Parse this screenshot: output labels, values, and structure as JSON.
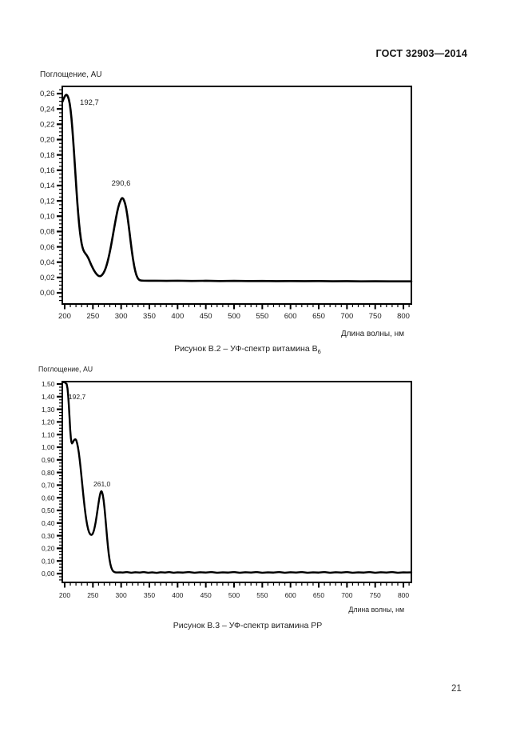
{
  "page": {
    "header": "ГОСТ 32903—2014",
    "page_number": "21"
  },
  "chart_data": [
    {
      "type": "line",
      "id": "b6",
      "title": "",
      "caption": {
        "text": "Рисунок В.2 – УФ-спектр витамина В",
        "sub": "6"
      },
      "x_axis": {
        "label": "Длина волны, нм",
        "min": 195.8,
        "max": 814.1,
        "major_values": [
          200,
          250,
          300,
          350,
          400,
          450,
          500,
          550,
          600,
          650,
          700,
          750,
          800
        ],
        "major_labels": [
          "200",
          "250",
          "300",
          "350",
          "400",
          "450",
          "500",
          "550",
          "600",
          "650",
          "700",
          "750",
          "800"
        ],
        "minor_start": 200,
        "minor_end": 810,
        "minor_step": 10
      },
      "y_axis": {
        "label": "Поглощение, AU",
        "min": -0.0146,
        "max": 0.2694,
        "major_values": [
          0,
          0.02,
          0.04,
          0.06,
          0.08,
          0.1,
          0.12,
          0.14,
          0.16,
          0.18,
          0.2,
          0.22,
          0.24,
          0.26
        ],
        "major_labels": [
          "0,00",
          "0,02",
          "0,04",
          "0,06",
          "0,08",
          "0,10",
          "0,12",
          "0,14",
          "0,16",
          "0,18",
          "0,20",
          "0,22",
          "0,24",
          "0,26"
        ],
        "minor_start": -0.01,
        "minor_end": 0.265,
        "minor_step": 0.005
      },
      "annotations": [
        {
          "text": "192,7",
          "x": 227,
          "y": 0.2455
        },
        {
          "text": "290,6",
          "x": 283,
          "y": 0.14
        }
      ],
      "series": [
        {
          "name": "absorbance",
          "points": [
            [
              195.8,
              0.249
            ],
            [
              198,
              0.253
            ],
            [
              200,
              0.256
            ],
            [
              201.5,
              0.2578
            ],
            [
              203,
              0.2585
            ],
            [
              204.5,
              0.2578
            ],
            [
              206,
              0.2555
            ],
            [
              207.5,
              0.252
            ],
            [
              209,
              0.2465
            ],
            [
              210.5,
              0.2385
            ],
            [
              212,
              0.228
            ],
            [
              213.5,
              0.215
            ],
            [
              215,
              0.2
            ],
            [
              216.5,
              0.184
            ],
            [
              218,
              0.167
            ],
            [
              219.5,
              0.15
            ],
            [
              221,
              0.133
            ],
            [
              222.5,
              0.117
            ],
            [
              224,
              0.103
            ],
            [
              225.5,
              0.0905
            ],
            [
              227,
              0.08
            ],
            [
              228.5,
              0.0715
            ],
            [
              230,
              0.0645
            ],
            [
              231.5,
              0.0595
            ],
            [
              233,
              0.056
            ],
            [
              235,
              0.053
            ],
            [
              237,
              0.051
            ],
            [
              239,
              0.049
            ],
            [
              241,
              0.0465
            ],
            [
              243,
              0.0435
            ],
            [
              245,
              0.04
            ],
            [
              247,
              0.0365
            ],
            [
              249,
              0.0335
            ],
            [
              251,
              0.0305
            ],
            [
              253,
              0.028
            ],
            [
              255,
              0.0258
            ],
            [
              257,
              0.024
            ],
            [
              259,
              0.0226
            ],
            [
              261,
              0.0218
            ],
            [
              263,
              0.0217
            ],
            [
              265,
              0.0225
            ],
            [
              267,
              0.024
            ],
            [
              269,
              0.0262
            ],
            [
              271,
              0.0292
            ],
            [
              273,
              0.033
            ],
            [
              275,
              0.0378
            ],
            [
              277,
              0.0435
            ],
            [
              279,
              0.05
            ],
            [
              281,
              0.0572
            ],
            [
              283,
              0.065
            ],
            [
              285,
              0.0732
            ],
            [
              287,
              0.0818
            ],
            [
              289,
              0.09
            ],
            [
              291,
              0.098
            ],
            [
              293,
              0.1055
            ],
            [
              295,
              0.1118
            ],
            [
              297,
              0.1168
            ],
            [
              299,
              0.1205
            ],
            [
              300.5,
              0.1228
            ],
            [
              302,
              0.1237
            ],
            [
              303.5,
              0.123
            ],
            [
              305,
              0.1208
            ],
            [
              307,
              0.1165
            ],
            [
              309,
              0.11
            ],
            [
              311,
              0.101
            ],
            [
              313,
              0.09
            ],
            [
              315,
              0.0782
            ],
            [
              317,
              0.066
            ],
            [
              319,
              0.0545
            ],
            [
              321,
              0.0442
            ],
            [
              323,
              0.0355
            ],
            [
              325,
              0.0285
            ],
            [
              327,
              0.0232
            ],
            [
              329,
              0.0197
            ],
            [
              331,
              0.0176
            ],
            [
              333,
              0.0165
            ],
            [
              336,
              0.016
            ],
            [
              340,
              0.0158
            ],
            [
              348,
              0.0157
            ],
            [
              360,
              0.0158
            ],
            [
              380,
              0.0156
            ],
            [
              400,
              0.0158
            ],
            [
              425,
              0.0155
            ],
            [
              450,
              0.0157
            ],
            [
              475,
              0.0154
            ],
            [
              500,
              0.0156
            ],
            [
              525,
              0.0153
            ],
            [
              550,
              0.0155
            ],
            [
              575,
              0.0152
            ],
            [
              600,
              0.0154
            ],
            [
              625,
              0.0152
            ],
            [
              650,
              0.0153
            ],
            [
              675,
              0.0151
            ],
            [
              700,
              0.0152
            ],
            [
              725,
              0.015
            ],
            [
              750,
              0.0151
            ],
            [
              775,
              0.015
            ],
            [
              800,
              0.015
            ],
            [
              814,
              0.015
            ]
          ]
        }
      ]
    },
    {
      "type": "line",
      "id": "pp",
      "title": "",
      "caption": {
        "text": "Рисунок В.3 – УФ-спектр витамина РР",
        "sub": ""
      },
      "x_axis": {
        "label": "Длина волны, нм",
        "min": 195.8,
        "max": 814.1,
        "major_values": [
          200,
          250,
          300,
          350,
          400,
          450,
          500,
          550,
          600,
          650,
          700,
          750,
          800
        ],
        "major_labels": [
          "200",
          "250",
          "300",
          "350",
          "400",
          "450",
          "500",
          "550",
          "600",
          "650",
          "700",
          "750",
          "800"
        ],
        "minor_start": 200,
        "minor_end": 810,
        "minor_step": 10
      },
      "y_axis": {
        "label": "Поглощение, AU",
        "min": -0.0696,
        "max": 1.519,
        "major_values": [
          0,
          0.1,
          0.2,
          0.3,
          0.4,
          0.5,
          0.6,
          0.7,
          0.8,
          0.9,
          1.0,
          1.1,
          1.2,
          1.3,
          1.4,
          1.5
        ],
        "major_labels": [
          "0,00",
          "0,10",
          "0,20",
          "0,30",
          "0,40",
          "0,50",
          "0,60",
          "0,70",
          "0,80",
          "0,90",
          "1,00",
          "1,10",
          "1,20",
          "1,30",
          "1,40",
          "1,50"
        ],
        "minor_start": -0.05,
        "minor_end": 1.5,
        "minor_step": 0.025
      },
      "annotations": [
        {
          "text": "192,7",
          "x": 207,
          "y": 1.38
        },
        {
          "text": "261,0",
          "x": 251,
          "y": 0.69
        }
      ],
      "series": [
        {
          "name": "absorbance",
          "points": [
            [
              195.8,
              1.514
            ],
            [
              200,
              1.514
            ],
            [
              202,
              1.505
            ],
            [
              203.5,
              1.5
            ],
            [
              205,
              1.465
            ],
            [
              206.2,
              1.408
            ],
            [
              207.4,
              1.33
            ],
            [
              208.6,
              1.235
            ],
            [
              209.8,
              1.138
            ],
            [
              211,
              1.072
            ],
            [
              212,
              1.04
            ],
            [
              213,
              1.03
            ],
            [
              214.5,
              1.038
            ],
            [
              216,
              1.052
            ],
            [
              217.5,
              1.06
            ],
            [
              219,
              1.063
            ],
            [
              220.5,
              1.055
            ],
            [
              222,
              1.032
            ],
            [
              223.5,
              1.0
            ],
            [
              225,
              0.958
            ],
            [
              226.5,
              0.905
            ],
            [
              228,
              0.845
            ],
            [
              229.5,
              0.78
            ],
            [
              231,
              0.712
            ],
            [
              232.5,
              0.645
            ],
            [
              234,
              0.58
            ],
            [
              235.5,
              0.52
            ],
            [
              237,
              0.466
            ],
            [
              238.5,
              0.42
            ],
            [
              240,
              0.382
            ],
            [
              241.5,
              0.352
            ],
            [
              243,
              0.33
            ],
            [
              244.5,
              0.316
            ],
            [
              246,
              0.308
            ],
            [
              247.5,
              0.306
            ],
            [
              249,
              0.311
            ],
            [
              250.5,
              0.324
            ],
            [
              252,
              0.345
            ],
            [
              253.5,
              0.374
            ],
            [
              255,
              0.41
            ],
            [
              256.5,
              0.452
            ],
            [
              258,
              0.497
            ],
            [
              259.5,
              0.543
            ],
            [
              261,
              0.587
            ],
            [
              262.5,
              0.623
            ],
            [
              263.8,
              0.645
            ],
            [
              265,
              0.652
            ],
            [
              266.2,
              0.645
            ],
            [
              267.5,
              0.622
            ],
            [
              269,
              0.58
            ],
            [
              270.5,
              0.52
            ],
            [
              272,
              0.448
            ],
            [
              273.5,
              0.37
            ],
            [
              275,
              0.292
            ],
            [
              276.5,
              0.22
            ],
            [
              278,
              0.158
            ],
            [
              279.5,
              0.11
            ],
            [
              281,
              0.074
            ],
            [
              282.5,
              0.049
            ],
            [
              284,
              0.032
            ],
            [
              285.5,
              0.021
            ],
            [
              287,
              0.015
            ],
            [
              289,
              0.011
            ],
            [
              291,
              0.009
            ],
            [
              294,
              0.009
            ],
            [
              298,
              0.01
            ],
            [
              303,
              0.008
            ],
            [
              310,
              0.012
            ],
            [
              318,
              0.007
            ],
            [
              325,
              0.011
            ],
            [
              333,
              0.008
            ],
            [
              340,
              0.012
            ],
            [
              348,
              0.007
            ],
            [
              355,
              0.01
            ],
            [
              363,
              0.006
            ],
            [
              370,
              0.011
            ],
            [
              378,
              0.008
            ],
            [
              385,
              0.012
            ],
            [
              393,
              0.007
            ],
            [
              400,
              0.01
            ],
            [
              410,
              0.008
            ],
            [
              420,
              0.012
            ],
            [
              430,
              0.007
            ],
            [
              440,
              0.011
            ],
            [
              450,
              0.008
            ],
            [
              460,
              0.012
            ],
            [
              470,
              0.007
            ],
            [
              480,
              0.01
            ],
            [
              490,
              0.008
            ],
            [
              500,
              0.012
            ],
            [
              510,
              0.007
            ],
            [
              520,
              0.011
            ],
            [
              530,
              0.008
            ],
            [
              540,
              0.012
            ],
            [
              550,
              0.007
            ],
            [
              560,
              0.01
            ],
            [
              570,
              0.008
            ],
            [
              580,
              0.012
            ],
            [
              590,
              0.007
            ],
            [
              600,
              0.011
            ],
            [
              610,
              0.008
            ],
            [
              620,
              0.012
            ],
            [
              630,
              0.007
            ],
            [
              640,
              0.01
            ],
            [
              650,
              0.008
            ],
            [
              660,
              0.012
            ],
            [
              670,
              0.007
            ],
            [
              680,
              0.011
            ],
            [
              690,
              0.008
            ],
            [
              700,
              0.012
            ],
            [
              710,
              0.007
            ],
            [
              720,
              0.01
            ],
            [
              730,
              0.008
            ],
            [
              740,
              0.012
            ],
            [
              750,
              0.007
            ],
            [
              760,
              0.011
            ],
            [
              770,
              0.008
            ],
            [
              780,
              0.012
            ],
            [
              790,
              0.007
            ],
            [
              800,
              0.01
            ],
            [
              807,
              0.009
            ],
            [
              814,
              0.01
            ]
          ]
        }
      ]
    }
  ]
}
